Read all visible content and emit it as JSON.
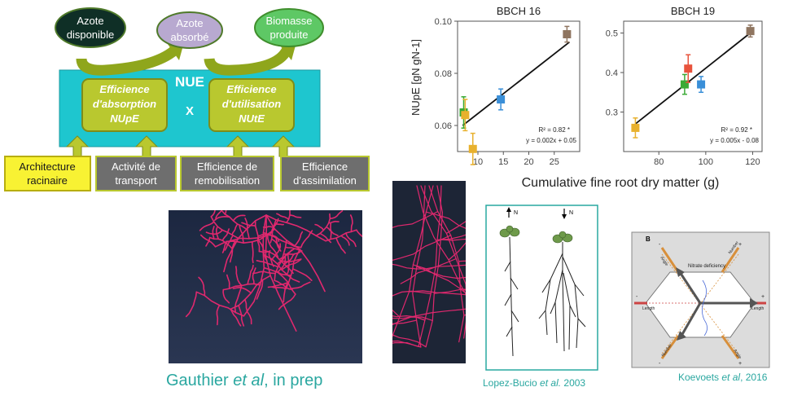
{
  "diagram": {
    "ellipses": {
      "azote_disponible": [
        "Azote",
        "disponible"
      ],
      "azote_absorbe": [
        "Azote",
        "absorbé"
      ],
      "biomasse": [
        "Biomasse",
        "produite"
      ]
    },
    "nue_label": "NUE",
    "multiply": "X",
    "nupe_box": [
      "Efficience",
      "d'absorption",
      "NUpE"
    ],
    "nute_box": [
      "Efficience",
      "d'utilisation",
      "NUtE"
    ],
    "factors": [
      [
        "Architecture",
        "racinaire"
      ],
      [
        "Activité de",
        "transport"
      ],
      [
        "Efficience de",
        "remobilisation"
      ],
      [
        "Efficience",
        "d'assimilation"
      ]
    ]
  },
  "chart_data": [
    {
      "type": "scatter",
      "title": "BBCH 16",
      "ylabel": "NUpE [gN gN-1]",
      "xlabel": "Cumulative fine root dry matter (g)",
      "xlim": [
        6,
        30
      ],
      "ylim": [
        0.05,
        0.1
      ],
      "xticks": [
        10,
        15,
        20,
        25
      ],
      "yticks": [
        0.06,
        0.08,
        0.1
      ],
      "ytick_labels": [
        "0.06",
        "0.08",
        "0.10"
      ],
      "points": [
        {
          "x": 7.2,
          "y": 0.065,
          "err": 0.006,
          "color": "#3aaa35"
        },
        {
          "x": 7.5,
          "y": 0.064,
          "err": 0.006,
          "color": "#e8b12e"
        },
        {
          "x": 9.0,
          "y": 0.051,
          "err": 0.006,
          "color": "#e8b12e"
        },
        {
          "x": 14.5,
          "y": 0.07,
          "err": 0.004,
          "color": "#3a8fd8"
        },
        {
          "x": 27.5,
          "y": 0.095,
          "err": 0.003,
          "color": "#8f7560"
        }
      ],
      "fit": {
        "x": [
          7,
          28
        ],
        "y": [
          0.06,
          0.092
        ]
      },
      "r2": "R² = 0.82 *",
      "equation": "y = 0.002x + 0.05"
    },
    {
      "type": "scatter",
      "title": "BBCH 19",
      "xlim": [
        65,
        124
      ],
      "ylim": [
        0.2,
        0.53
      ],
      "xticks": [
        80,
        100,
        120
      ],
      "yticks": [
        0.3,
        0.4,
        0.5
      ],
      "ytick_labels": [
        "0.3",
        "0.4",
        "0.5"
      ],
      "points": [
        {
          "x": 70,
          "y": 0.26,
          "err": 0.025,
          "color": "#e8b12e"
        },
        {
          "x": 91,
          "y": 0.37,
          "err": 0.025,
          "color": "#3aaa35"
        },
        {
          "x": 92.5,
          "y": 0.41,
          "err": 0.035,
          "color": "#e8533c"
        },
        {
          "x": 98,
          "y": 0.37,
          "err": 0.02,
          "color": "#3a8fd8"
        },
        {
          "x": 119,
          "y": 0.505,
          "err": 0.015,
          "color": "#8f7560"
        }
      ],
      "fit": {
        "x": [
          70,
          120
        ],
        "y": [
          0.27,
          0.505
        ]
      },
      "r2": "R² = 0.92 *",
      "equation": "y = 0.005x - 0.08"
    }
  ],
  "bottom": {
    "gauthier_caption": [
      "Gauthier ",
      "et al",
      ", in prep"
    ],
    "lopez_caption": [
      "Lopez-Bucio ",
      "et al.",
      " 2003"
    ],
    "koevoets_caption": [
      "Koevoets ",
      "et al",
      ", 2016"
    ],
    "lopez_figure": {
      "left_label": "N",
      "right_label": "N"
    },
    "koevoets_figure": {
      "panel_letter": "B",
      "nitrate_label": "Nitrate deficiency",
      "length_left": "Length",
      "length_right": "Length",
      "angle_label": "Angle",
      "number_label": "Number",
      "plus": "+",
      "minus": "-"
    }
  }
}
